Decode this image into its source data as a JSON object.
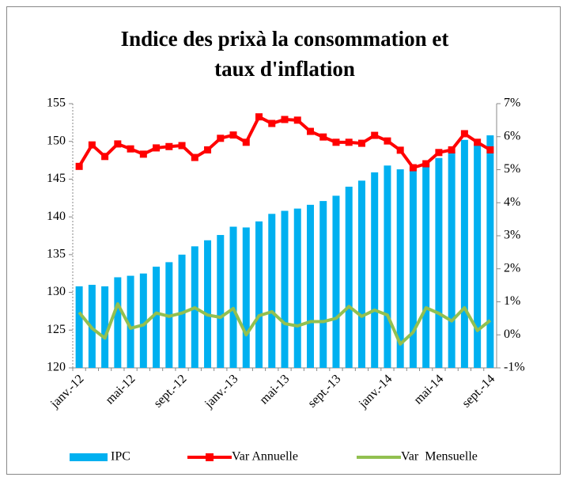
{
  "chart_data": {
    "type": "bar-line",
    "title": [
      "Indice des prixà la consommation et",
      "taux d'inflation"
    ],
    "categories": [
      "janv.-12",
      null,
      null,
      null,
      "mai-12",
      null,
      null,
      null,
      "sept.-12",
      null,
      null,
      null,
      "janv.-13",
      null,
      null,
      null,
      "mai-13",
      null,
      null,
      null,
      "sept.-13",
      null,
      null,
      null,
      "janv.-14",
      null,
      null,
      null,
      "mai-14",
      null,
      null,
      null,
      "sept.-14"
    ],
    "series": [
      {
        "name": "IPC",
        "color": "#00b0f0",
        "type": "bar",
        "values": [
          130.8,
          131.0,
          130.8,
          132.0,
          132.2,
          132.5,
          133.4,
          134.0,
          135.0,
          136.1,
          136.9,
          137.6,
          138.7,
          138.6,
          139.4,
          140.4,
          140.8,
          141.1,
          141.6,
          142.1,
          142.8,
          144.0,
          144.8,
          145.9,
          146.8,
          146.3,
          146.5,
          147.2,
          147.8,
          148.6,
          150.2,
          149.6,
          150.8
        ]
      },
      {
        "name": "Var Annuelle",
        "color": "#ff0000",
        "type": "line",
        "marker": "square",
        "axis": "y2",
        "values": [
          5.1,
          5.75,
          5.4,
          5.78,
          5.63,
          5.47,
          5.66,
          5.7,
          5.73,
          5.37,
          5.6,
          5.95,
          6.05,
          5.83,
          6.6,
          6.4,
          6.52,
          6.5,
          6.16,
          5.99,
          5.83,
          5.83,
          5.8,
          6.04,
          5.87,
          5.59,
          5.06,
          5.18,
          5.52,
          5.6,
          6.09,
          5.83,
          5.6
        ]
      },
      {
        "name": "Var  Mensuelle",
        "color": "#92c050",
        "type": "line",
        "axis": "y2",
        "values": [
          0.68,
          0.2,
          -0.1,
          0.94,
          0.2,
          0.3,
          0.66,
          0.56,
          0.66,
          0.82,
          0.6,
          0.53,
          0.8,
          0.0,
          0.58,
          0.7,
          0.34,
          0.27,
          0.4,
          0.4,
          0.5,
          0.86,
          0.56,
          0.75,
          0.6,
          -0.28,
          0.08,
          0.82,
          0.65,
          0.42,
          0.82,
          0.13,
          0.44
        ]
      }
    ],
    "ylim": [
      120,
      155
    ],
    "yticks": [
      120,
      125,
      130,
      135,
      140,
      145,
      150,
      155
    ],
    "y2lim": [
      -1,
      7
    ],
    "y2ticks": [
      {
        "value": -1,
        "label": "-1%"
      },
      {
        "value": 0,
        "label": "0%"
      },
      {
        "value": 1,
        "label": "1%"
      },
      {
        "value": 2,
        "label": "2%"
      },
      {
        "value": 3,
        "label": "3%"
      },
      {
        "value": 4,
        "label": "4%"
      },
      {
        "value": 5,
        "label": "5%"
      },
      {
        "value": 6,
        "label": "6%"
      },
      {
        "value": 7,
        "label": "7%"
      }
    ],
    "legend": "bottom"
  }
}
